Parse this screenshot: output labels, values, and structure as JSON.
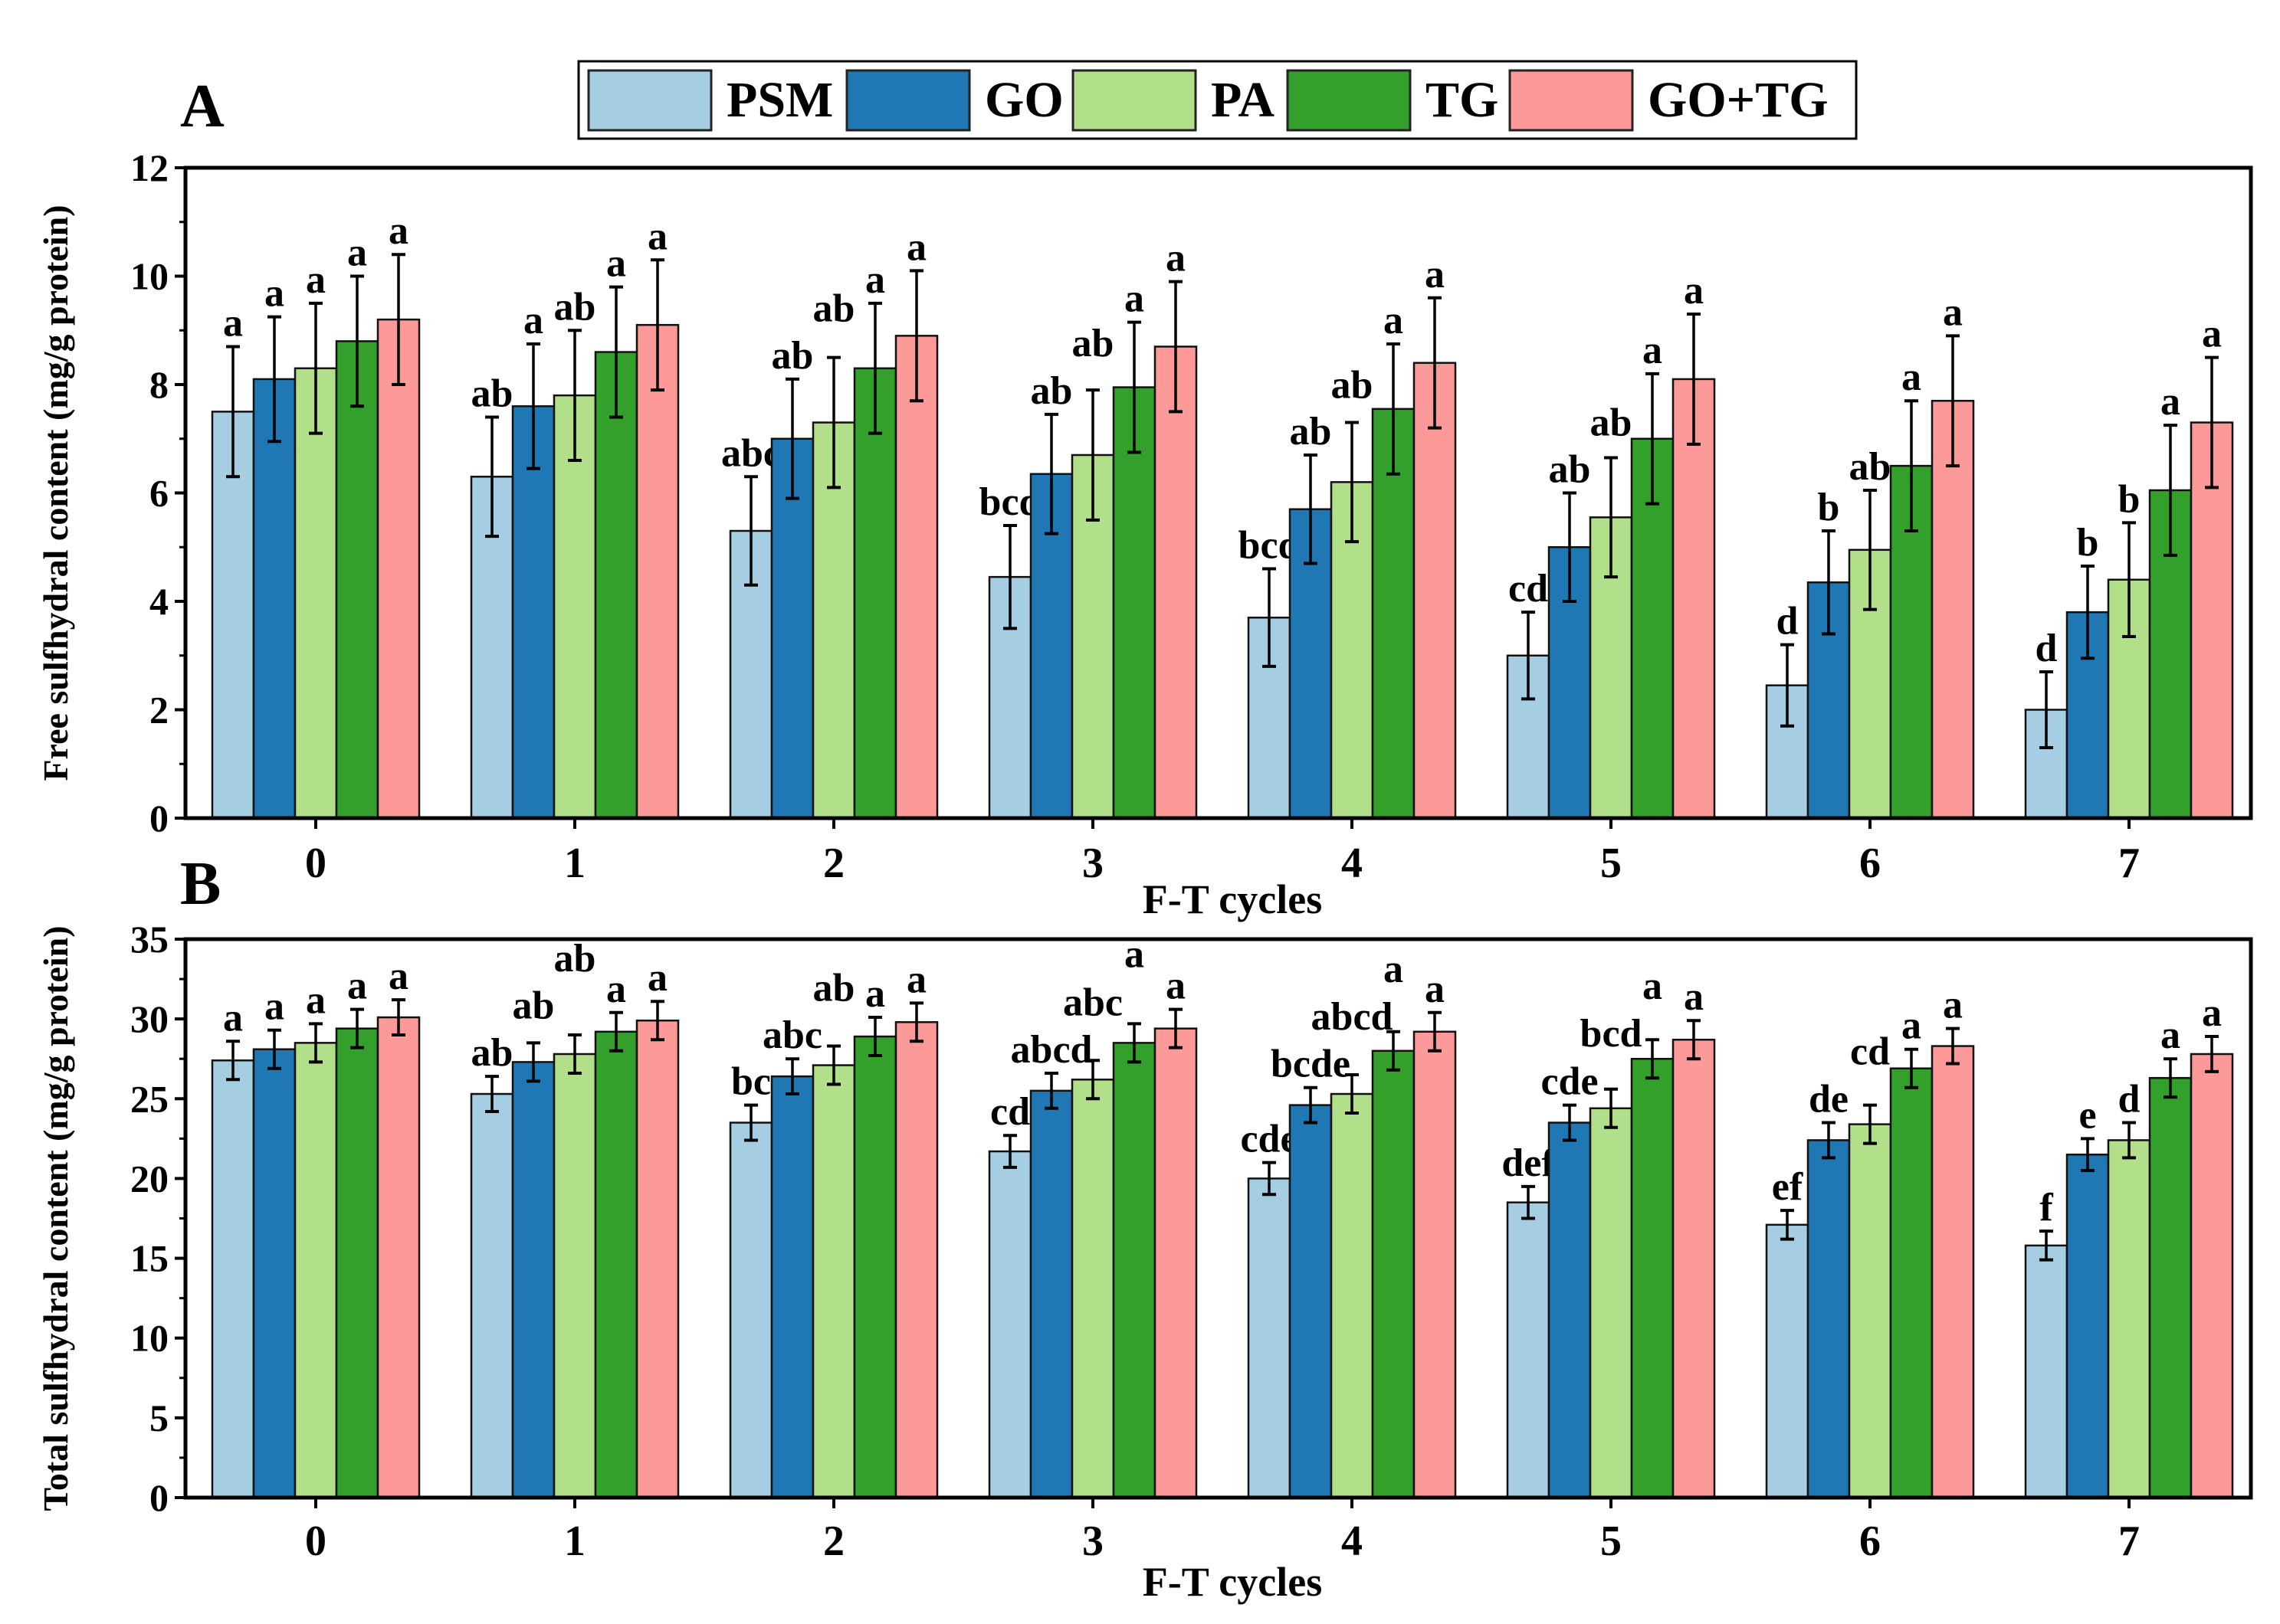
{
  "legend": [
    {
      "name": "PSM",
      "color": "#a6cee3"
    },
    {
      "name": "GO",
      "color": "#1f78b4"
    },
    {
      "name": "PA",
      "color": "#b2df8a"
    },
    {
      "name": "TG",
      "color": "#33a02c"
    },
    {
      "name": "GO+TG",
      "color": "#fb9a99"
    }
  ],
  "chart_data": [
    {
      "type": "bar",
      "panel_label": "A",
      "xlabel": "F-T cycles",
      "ylabel": "Free sulfhydral content (mg/g protein)",
      "categories": [
        "0",
        "1",
        "2",
        "3",
        "4",
        "5",
        "6",
        "7"
      ],
      "ylim": [
        0,
        12
      ],
      "yticks": [
        0,
        2,
        4,
        6,
        8,
        10,
        12
      ],
      "series": [
        {
          "name": "PSM",
          "values": [
            7.5,
            6.3,
            5.3,
            4.45,
            3.7,
            3.0,
            2.45,
            2.0
          ],
          "errors": [
            1.2,
            1.1,
            1.0,
            0.95,
            0.9,
            0.8,
            0.75,
            0.7
          ],
          "letters": [
            "a",
            "ab",
            "abc",
            "bcd",
            "bcd",
            "cd",
            "d",
            "d"
          ]
        },
        {
          "name": "GO",
          "values": [
            8.1,
            7.6,
            7.0,
            6.35,
            5.7,
            5.0,
            4.35,
            3.8
          ],
          "errors": [
            1.15,
            1.15,
            1.1,
            1.1,
            1.0,
            1.0,
            0.95,
            0.85
          ],
          "letters": [
            "a",
            "a",
            "ab",
            "ab",
            "ab",
            "ab",
            "b",
            "b"
          ]
        },
        {
          "name": "PA",
          "values": [
            8.3,
            7.8,
            7.3,
            6.7,
            6.2,
            5.55,
            4.95,
            4.4
          ],
          "errors": [
            1.2,
            1.2,
            1.2,
            1.2,
            1.1,
            1.1,
            1.1,
            1.05
          ],
          "letters": [
            "a",
            "ab",
            "ab",
            "ab",
            "ab",
            "ab",
            "ab",
            "b"
          ]
        },
        {
          "name": "TG",
          "values": [
            8.8,
            8.6,
            8.3,
            7.95,
            7.55,
            7.0,
            6.5,
            6.05
          ],
          "errors": [
            1.2,
            1.2,
            1.2,
            1.2,
            1.2,
            1.2,
            1.2,
            1.2
          ],
          "letters": [
            "a",
            "a",
            "a",
            "a",
            "a",
            "a",
            "a",
            "a"
          ]
        },
        {
          "name": "GO+TG",
          "values": [
            9.2,
            9.1,
            8.9,
            8.7,
            8.4,
            8.1,
            7.7,
            7.3
          ],
          "errors": [
            1.2,
            1.2,
            1.2,
            1.2,
            1.2,
            1.2,
            1.2,
            1.2
          ],
          "letters": [
            "a",
            "a",
            "a",
            "a",
            "a",
            "a",
            "a",
            "a"
          ]
        }
      ]
    },
    {
      "type": "bar",
      "panel_label": "B",
      "xlabel": "F-T cycles",
      "ylabel": "Total sulfhydral content (mg/g protein)",
      "categories": [
        "0",
        "1",
        "2",
        "3",
        "4",
        "5",
        "6",
        "7"
      ],
      "ylim": [
        0,
        35
      ],
      "yticks": [
        0,
        5,
        10,
        15,
        20,
        25,
        30,
        35
      ],
      "series": [
        {
          "name": "PSM",
          "values": [
            27.4,
            25.3,
            23.5,
            21.7,
            20.0,
            18.5,
            17.1,
            15.8
          ],
          "errors": [
            1.2,
            1.1,
            1.1,
            1.0,
            1.0,
            1.0,
            0.9,
            0.9
          ],
          "letters": [
            "a",
            "ab",
            "bc",
            "cd",
            "cde",
            "def",
            "ef",
            "f"
          ]
        },
        {
          "name": "GO",
          "values": [
            28.1,
            27.3,
            26.4,
            25.5,
            24.6,
            23.5,
            22.4,
            21.5
          ],
          "errors": [
            1.2,
            1.2,
            1.1,
            1.1,
            1.1,
            1.1,
            1.1,
            1.0
          ],
          "letters": [
            "a",
            "ab",
            "abc",
            "abcd",
            "bcde",
            "cde",
            "de",
            "e"
          ]
        },
        {
          "name": "PA",
          "values": [
            28.5,
            27.8,
            27.1,
            26.2,
            25.3,
            24.4,
            23.4,
            22.4
          ],
          "errors": [
            1.2,
            1.2,
            1.2,
            1.2,
            1.2,
            1.2,
            1.2,
            1.1
          ],
          "letters": [
            "a",
            "ab",
            "ab",
            "abc",
            "abcd",
            "bcd",
            "cd",
            "d"
          ]
        },
        {
          "name": "TG",
          "values": [
            29.4,
            29.2,
            28.9,
            28.5,
            28.0,
            27.5,
            26.9,
            26.3
          ],
          "errors": [
            1.2,
            1.2,
            1.2,
            1.2,
            1.2,
            1.2,
            1.2,
            1.2
          ],
          "letters": [
            "a",
            "a",
            "a",
            "a",
            "a",
            "a",
            "a",
            "a"
          ]
        },
        {
          "name": "GO+TG",
          "values": [
            30.1,
            29.9,
            29.8,
            29.4,
            29.2,
            28.7,
            28.3,
            27.8
          ],
          "errors": [
            1.1,
            1.2,
            1.2,
            1.2,
            1.2,
            1.2,
            1.1,
            1.1
          ],
          "letters": [
            "a",
            "a",
            "a",
            "a",
            "a",
            "a",
            "a",
            "a"
          ]
        }
      ]
    }
  ]
}
